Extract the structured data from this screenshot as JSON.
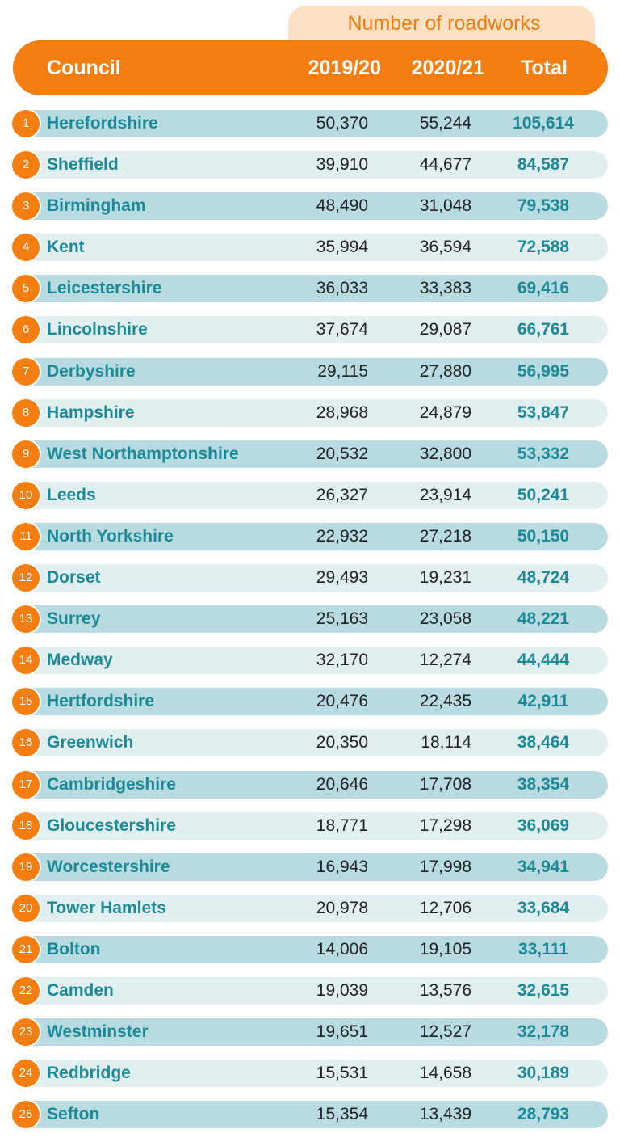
{
  "header": {
    "group_label": "Number of roadworks",
    "council_label": "Council",
    "col_2019": "2019/20",
    "col_2020": "2020/21",
    "col_total": "Total"
  },
  "colors": {
    "accent_orange": "#f57e10",
    "teal_text": "#1b8a96",
    "row_dark": "#b7dbe1",
    "row_light": "#e2eff1",
    "header_tint": "#fde1c4"
  },
  "chart_data": {
    "type": "table",
    "title": "Number of roadworks",
    "columns": [
      "Council",
      "2019/20",
      "2020/21",
      "Total"
    ],
    "rows": [
      {
        "rank": "1",
        "council": "Herefordshire",
        "y2019": "50,370",
        "y2020": "55,244",
        "total": "105,614"
      },
      {
        "rank": "2",
        "council": "Sheffield",
        "y2019": "39,910",
        "y2020": "44,677",
        "total": "84,587"
      },
      {
        "rank": "3",
        "council": "Birmingham",
        "y2019": "48,490",
        "y2020": "31,048",
        "total": "79,538"
      },
      {
        "rank": "4",
        "council": "Kent",
        "y2019": "35,994",
        "y2020": "36,594",
        "total": "72,588"
      },
      {
        "rank": "5",
        "council": "Leicestershire",
        "y2019": "36,033",
        "y2020": "33,383",
        "total": "69,416"
      },
      {
        "rank": "6",
        "council": "Lincolnshire",
        "y2019": "37,674",
        "y2020": "29,087",
        "total": "66,761"
      },
      {
        "rank": "7",
        "council": "Derbyshire",
        "y2019": "29,115",
        "y2020": "27,880",
        "total": "56,995"
      },
      {
        "rank": "8",
        "council": "Hampshire",
        "y2019": "28,968",
        "y2020": "24,879",
        "total": "53,847"
      },
      {
        "rank": "9",
        "council": "West Northamptonshire",
        "y2019": "20,532",
        "y2020": "32,800",
        "total": "53,332"
      },
      {
        "rank": "10",
        "council": "Leeds",
        "y2019": "26,327",
        "y2020": "23,914",
        "total": "50,241"
      },
      {
        "rank": "11",
        "council": "North Yorkshire",
        "y2019": "22,932",
        "y2020": "27,218",
        "total": "50,150"
      },
      {
        "rank": "12",
        "council": "Dorset",
        "y2019": "29,493",
        "y2020": "19,231",
        "total": "48,724"
      },
      {
        "rank": "13",
        "council": "Surrey",
        "y2019": "25,163",
        "y2020": "23,058",
        "total": "48,221"
      },
      {
        "rank": "14",
        "council": "Medway",
        "y2019": "32,170",
        "y2020": "12,274",
        "total": "44,444"
      },
      {
        "rank": "15",
        "council": "Hertfordshire",
        "y2019": "20,476",
        "y2020": "22,435",
        "total": "42,911"
      },
      {
        "rank": "16",
        "council": "Greenwich",
        "y2019": "20,350",
        "y2020": "18,114",
        "total": "38,464"
      },
      {
        "rank": "17",
        "council": "Cambridgeshire",
        "y2019": "20,646",
        "y2020": "17,708",
        "total": "38,354"
      },
      {
        "rank": "18",
        "council": "Gloucestershire",
        "y2019": "18,771",
        "y2020": "17,298",
        "total": "36,069"
      },
      {
        "rank": "19",
        "council": "Worcestershire",
        "y2019": "16,943",
        "y2020": "17,998",
        "total": "34,941"
      },
      {
        "rank": "20",
        "council": "Tower Hamlets",
        "y2019": "20,978",
        "y2020": "12,706",
        "total": "33,684"
      },
      {
        "rank": "21",
        "council": "Bolton",
        "y2019": "14,006",
        "y2020": "19,105",
        "total": "33,111"
      },
      {
        "rank": "22",
        "council": "Camden",
        "y2019": "19,039",
        "y2020": "13,576",
        "total": "32,615"
      },
      {
        "rank": "23",
        "council": "Westminster",
        "y2019": "19,651",
        "y2020": "12,527",
        "total": "32,178"
      },
      {
        "rank": "24",
        "council": "Redbridge",
        "y2019": "15,531",
        "y2020": "14,658",
        "total": "30,189"
      },
      {
        "rank": "25",
        "council": "Sefton",
        "y2019": "15,354",
        "y2020": "13,439",
        "total": "28,793"
      }
    ]
  }
}
